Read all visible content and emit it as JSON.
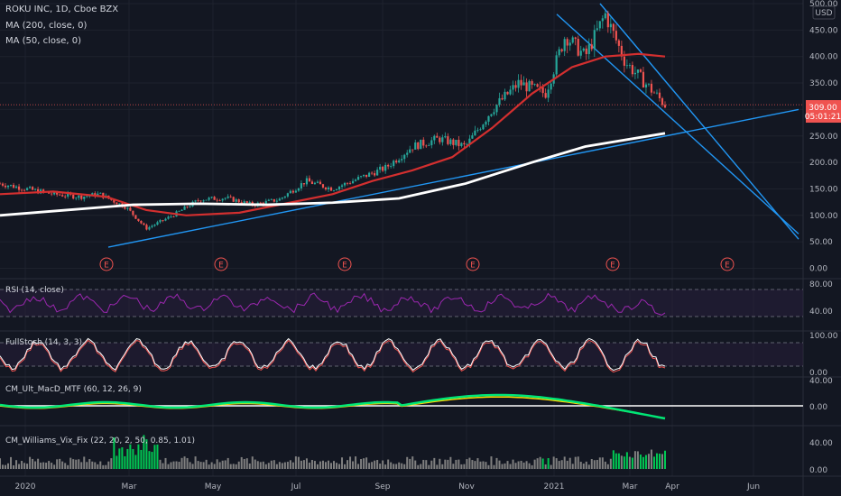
{
  "header": {
    "symbol_line": "ROKU INC, 1D, Cboe BZX",
    "ma200_label": "MA (200, close, 0)",
    "ma50_label": "MA (50, close, 0)",
    "currency": "USD"
  },
  "price_badge": {
    "price": "309.00",
    "countdown": "05:01:21"
  },
  "colors": {
    "background": "#131722",
    "grid": "#1e222d",
    "up": "#26a69a",
    "down": "#ef5350",
    "ma50": "#d32f2f",
    "ma200": "#ffffff",
    "trendline": "#2196f3",
    "axis_text": "#b2b5be",
    "indicator_line": "#9c27b0",
    "stoch_k": "#ffffff",
    "stoch_d": "#ef5350",
    "vix_high": "#00c853",
    "vix_normal": "#808080"
  },
  "x_axis": {
    "labels": [
      "2020",
      "Mar",
      "May",
      "Jul",
      "Sep",
      "Nov",
      "2021",
      "Mar",
      "Apr",
      "Jun"
    ]
  },
  "earnings_markers": {
    "label": "E",
    "count": 6
  },
  "panes": {
    "rsi": {
      "label": "RSI (14, close)",
      "ticks": [
        "80.00",
        "40.00"
      ]
    },
    "stoch": {
      "label": "FullStoch (14, 3, 3)",
      "ticks": [
        "100.00",
        "0.00"
      ]
    },
    "macd": {
      "label": "CM_Ult_MacD_MTF (60, 12, 26, 9)",
      "ticks": [
        "40.00",
        "0.00"
      ]
    },
    "vix": {
      "label": "CM_Williams_Vix_Fix (22, 20, 2, 50, 0.85, 1.01)",
      "ticks": [
        "40.00",
        "0.00"
      ]
    }
  },
  "chart_data": {
    "type": "candlestick",
    "title": "ROKU INC, 1D, Cboe BZX",
    "y_ticks": [
      500,
      450,
      400,
      350,
      300,
      250,
      200,
      150,
      100,
      50,
      0
    ],
    "ylim": [
      0,
      500
    ],
    "last_price": 309.0,
    "price_path": [
      [
        0,
        160
      ],
      [
        0.04,
        150
      ],
      [
        0.08,
        140
      ],
      [
        0.12,
        135
      ],
      [
        0.15,
        140
      ],
      [
        0.19,
        115
      ],
      [
        0.22,
        75
      ],
      [
        0.26,
        100
      ],
      [
        0.3,
        130
      ],
      [
        0.34,
        133
      ],
      [
        0.38,
        120
      ],
      [
        0.42,
        130
      ],
      [
        0.46,
        165
      ],
      [
        0.5,
        150
      ],
      [
        0.54,
        170
      ],
      [
        0.58,
        190
      ],
      [
        0.62,
        230
      ],
      [
        0.66,
        245
      ],
      [
        0.7,
        230
      ],
      [
        0.74,
        300
      ],
      [
        0.78,
        350
      ],
      [
        0.82,
        330
      ],
      [
        0.85,
        440
      ],
      [
        0.88,
        400
      ],
      [
        0.91,
        480
      ],
      [
        0.94,
        390
      ],
      [
        0.97,
        350
      ],
      [
        1.0,
        309
      ]
    ],
    "series": [
      {
        "name": "MA (50, close, 0)",
        "points": [
          [
            0,
            140
          ],
          [
            0.08,
            145
          ],
          [
            0.16,
            135
          ],
          [
            0.22,
            110
          ],
          [
            0.28,
            100
          ],
          [
            0.36,
            105
          ],
          [
            0.44,
            125
          ],
          [
            0.5,
            140
          ],
          [
            0.56,
            165
          ],
          [
            0.62,
            185
          ],
          [
            0.68,
            210
          ],
          [
            0.74,
            265
          ],
          [
            0.8,
            330
          ],
          [
            0.86,
            380
          ],
          [
            0.91,
            400
          ],
          [
            0.96,
            405
          ],
          [
            1.0,
            400
          ]
        ]
      },
      {
        "name": "MA (200, close, 0)",
        "points": [
          [
            0,
            100
          ],
          [
            0.1,
            110
          ],
          [
            0.2,
            120
          ],
          [
            0.3,
            122
          ],
          [
            0.4,
            120
          ],
          [
            0.5,
            124
          ],
          [
            0.6,
            132
          ],
          [
            0.7,
            160
          ],
          [
            0.8,
            200
          ],
          [
            0.88,
            230
          ],
          [
            1.0,
            255
          ]
        ]
      }
    ],
    "trendlines": [
      {
        "from": [
          "Feb 2020",
          40
        ],
        "to": [
          "Jun 2021",
          300
        ]
      },
      {
        "from": [
          "Jan 2021",
          480
        ],
        "to": [
          "Jun 2021",
          65
        ]
      },
      {
        "from": [
          "Feb 2021",
          500
        ],
        "to": [
          "Jun 2021",
          55
        ]
      }
    ]
  }
}
